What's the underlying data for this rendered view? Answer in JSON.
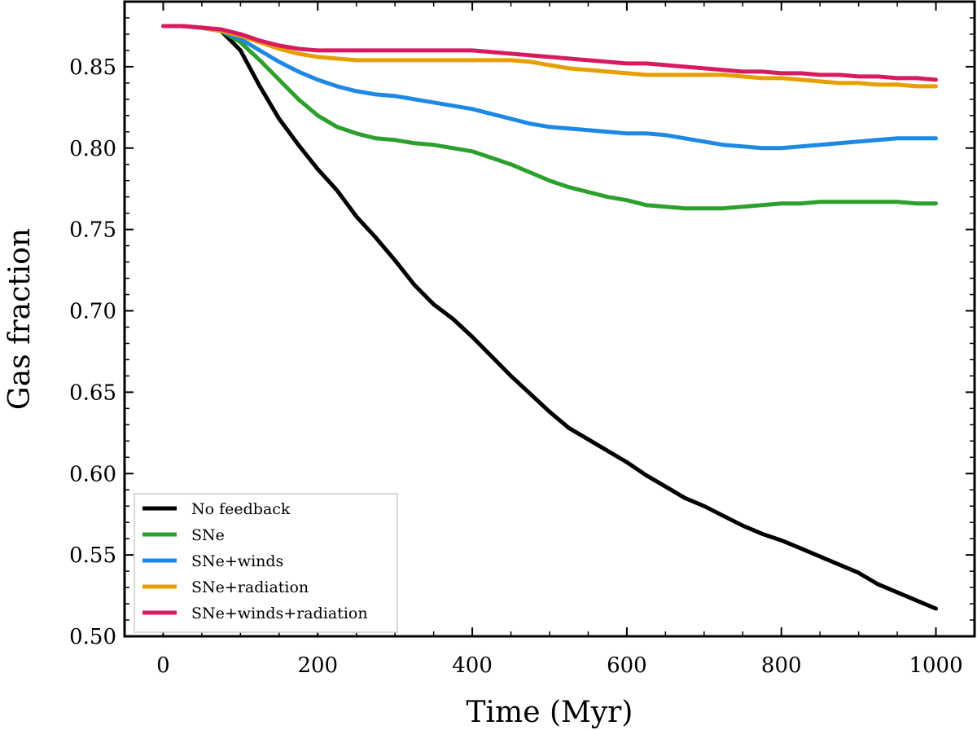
{
  "chart_data": {
    "type": "line",
    "title": "",
    "xlabel": "Time (Myr)",
    "ylabel": "Gas fraction",
    "xlim": [
      -50,
      1050
    ],
    "ylim": [
      0.5,
      0.89
    ],
    "xticks": [
      0,
      200,
      400,
      600,
      800,
      1000
    ],
    "xtick_labels": [
      "0",
      "200",
      "400",
      "600",
      "800",
      "1000"
    ],
    "yticks": [
      0.5,
      0.55,
      0.6,
      0.65,
      0.7,
      0.75,
      0.8,
      0.85
    ],
    "ytick_labels": [
      "0.50",
      "0.55",
      "0.60",
      "0.65",
      "0.70",
      "0.75",
      "0.80",
      "0.85"
    ],
    "grid": false,
    "legend_position": "bottom-left",
    "series": [
      {
        "name": "No feedback",
        "color": "#000000",
        "x": [
          0,
          25,
          50,
          75,
          100,
          125,
          150,
          175,
          200,
          225,
          250,
          275,
          300,
          325,
          350,
          375,
          400,
          425,
          450,
          475,
          500,
          525,
          550,
          575,
          600,
          625,
          650,
          675,
          700,
          725,
          750,
          775,
          800,
          825,
          850,
          875,
          900,
          925,
          950,
          975,
          1000
        ],
        "y": [
          0.875,
          0.875,
          0.874,
          0.872,
          0.86,
          0.838,
          0.818,
          0.802,
          0.787,
          0.774,
          0.758,
          0.745,
          0.731,
          0.716,
          0.704,
          0.695,
          0.684,
          0.672,
          0.66,
          0.649,
          0.638,
          0.628,
          0.621,
          0.614,
          0.607,
          0.599,
          0.592,
          0.585,
          0.58,
          0.574,
          0.568,
          0.563,
          0.559,
          0.554,
          0.549,
          0.544,
          0.539,
          0.532,
          0.527,
          0.522,
          0.517
        ]
      },
      {
        "name": "SNe",
        "color": "#2ca02c",
        "x": [
          0,
          25,
          50,
          75,
          100,
          125,
          150,
          175,
          200,
          225,
          250,
          275,
          300,
          325,
          350,
          375,
          400,
          425,
          450,
          475,
          500,
          525,
          550,
          575,
          600,
          625,
          650,
          675,
          700,
          725,
          750,
          775,
          800,
          825,
          850,
          875,
          900,
          925,
          950,
          975,
          1000
        ],
        "y": [
          0.875,
          0.875,
          0.874,
          0.872,
          0.865,
          0.854,
          0.842,
          0.83,
          0.82,
          0.813,
          0.809,
          0.806,
          0.805,
          0.803,
          0.802,
          0.8,
          0.798,
          0.794,
          0.79,
          0.785,
          0.78,
          0.776,
          0.773,
          0.77,
          0.768,
          0.765,
          0.764,
          0.763,
          0.763,
          0.763,
          0.764,
          0.765,
          0.766,
          0.766,
          0.767,
          0.767,
          0.767,
          0.767,
          0.767,
          0.766,
          0.766
        ]
      },
      {
        "name": "SNe+winds",
        "color": "#1e88e5",
        "x": [
          0,
          25,
          50,
          75,
          100,
          125,
          150,
          175,
          200,
          225,
          250,
          275,
          300,
          325,
          350,
          375,
          400,
          425,
          450,
          475,
          500,
          525,
          550,
          575,
          600,
          625,
          650,
          675,
          700,
          725,
          750,
          775,
          800,
          825,
          850,
          875,
          900,
          925,
          950,
          975,
          1000
        ],
        "y": [
          0.875,
          0.875,
          0.874,
          0.872,
          0.867,
          0.86,
          0.853,
          0.847,
          0.842,
          0.838,
          0.835,
          0.833,
          0.832,
          0.83,
          0.828,
          0.826,
          0.824,
          0.821,
          0.818,
          0.815,
          0.813,
          0.812,
          0.811,
          0.81,
          0.809,
          0.809,
          0.808,
          0.806,
          0.804,
          0.802,
          0.801,
          0.8,
          0.8,
          0.801,
          0.802,
          0.803,
          0.804,
          0.805,
          0.806,
          0.806,
          0.806
        ]
      },
      {
        "name": "SNe+radiation",
        "color": "#e69f00",
        "x": [
          0,
          25,
          50,
          75,
          100,
          125,
          150,
          175,
          200,
          225,
          250,
          275,
          300,
          325,
          350,
          375,
          400,
          425,
          450,
          475,
          500,
          525,
          550,
          575,
          600,
          625,
          650,
          675,
          700,
          725,
          750,
          775,
          800,
          825,
          850,
          875,
          900,
          925,
          950,
          975,
          1000
        ],
        "y": [
          0.875,
          0.875,
          0.874,
          0.872,
          0.869,
          0.865,
          0.861,
          0.858,
          0.856,
          0.855,
          0.854,
          0.854,
          0.854,
          0.854,
          0.854,
          0.854,
          0.854,
          0.854,
          0.854,
          0.853,
          0.851,
          0.849,
          0.848,
          0.847,
          0.846,
          0.845,
          0.845,
          0.845,
          0.845,
          0.845,
          0.844,
          0.843,
          0.843,
          0.842,
          0.841,
          0.84,
          0.84,
          0.839,
          0.839,
          0.838,
          0.838
        ]
      },
      {
        "name": "SNe+winds+radiation",
        "color": "#d81b60",
        "x": [
          0,
          25,
          50,
          75,
          100,
          125,
          150,
          175,
          200,
          225,
          250,
          275,
          300,
          325,
          350,
          375,
          400,
          425,
          450,
          475,
          500,
          525,
          550,
          575,
          600,
          625,
          650,
          675,
          700,
          725,
          750,
          775,
          800,
          825,
          850,
          875,
          900,
          925,
          950,
          975,
          1000
        ],
        "y": [
          0.875,
          0.875,
          0.874,
          0.873,
          0.87,
          0.866,
          0.863,
          0.861,
          0.86,
          0.86,
          0.86,
          0.86,
          0.86,
          0.86,
          0.86,
          0.86,
          0.86,
          0.859,
          0.858,
          0.857,
          0.856,
          0.855,
          0.854,
          0.853,
          0.852,
          0.852,
          0.851,
          0.85,
          0.849,
          0.848,
          0.847,
          0.847,
          0.846,
          0.846,
          0.845,
          0.845,
          0.844,
          0.844,
          0.843,
          0.843,
          0.842
        ]
      }
    ]
  }
}
